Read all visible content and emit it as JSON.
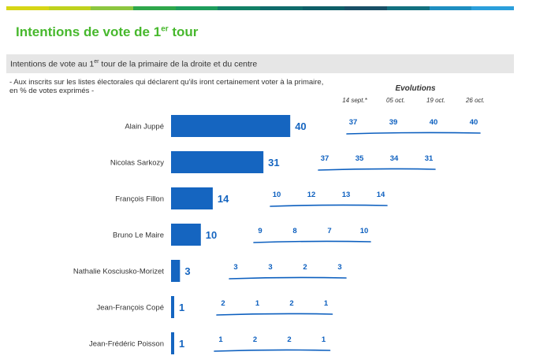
{
  "title": {
    "main": "Intentions de vote de 1",
    "sup": "er",
    "tail": " tour"
  },
  "subtitle": {
    "pre": "Intentions de vote au 1",
    "sup": "er",
    "post": " tour de la primaire de la droite et du centre"
  },
  "note_line1": "- Aux inscrits sur les listes électorales qui déclarent qu'ils iront certainement voter à la primaire,",
  "note_line2": "en % de votes exprimés -",
  "evolutions_heading": "Evolutions",
  "colors": {
    "bar": "#1565c0",
    "evo": "#0c5fbf",
    "title": "#47b82d",
    "topbar": [
      "#d7d615",
      "#bfd21d",
      "#8cc63f",
      "#2fa74b",
      "#1e9d5c",
      "#128066",
      "#0f6b6b",
      "#0d5e67",
      "#184f66",
      "#12707f",
      "#1e8ec0",
      "#2b9fdb"
    ]
  },
  "chart_data": {
    "type": "bar",
    "orientation": "horizontal",
    "title": "Intentions de vote au 1er tour de la primaire de la droite et du centre",
    "categories": [
      "Alain Juppé",
      "Nicolas Sarkozy",
      "François Fillon",
      "Bruno Le Maire",
      "Nathalie Kosciusko-Morizet",
      "Jean-François Copé",
      "Jean-Frédéric Poisson"
    ],
    "values": [
      40,
      31,
      14,
      10,
      3,
      1,
      1
    ],
    "unit": "% de votes exprimés",
    "evolutions": {
      "dates": [
        "14 sept.*",
        "05 oct.",
        "19 oct.",
        "26 oct."
      ],
      "series": [
        {
          "name": "Alain Juppé",
          "values": [
            37,
            39,
            40,
            40
          ]
        },
        {
          "name": "Nicolas Sarkozy",
          "values": [
            37,
            35,
            34,
            31
          ]
        },
        {
          "name": "François Fillon",
          "values": [
            10,
            12,
            13,
            14
          ]
        },
        {
          "name": "Bruno Le Maire",
          "values": [
            9,
            8,
            7,
            10
          ]
        },
        {
          "name": "Nathalie Kosciusko-Morizet",
          "values": [
            3,
            3,
            2,
            3
          ]
        },
        {
          "name": "Jean-François Copé",
          "values": [
            2,
            1,
            2,
            1
          ]
        },
        {
          "name": "Jean-Frédéric Poisson",
          "values": [
            1,
            2,
            2,
            1
          ]
        }
      ]
    }
  }
}
